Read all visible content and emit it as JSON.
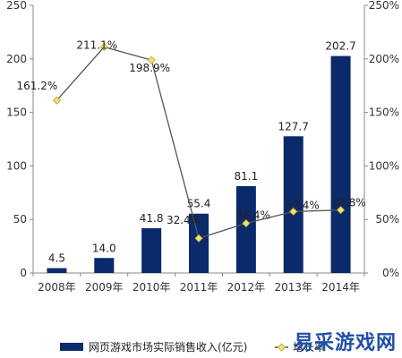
{
  "chart_data": {
    "type": "bar",
    "categories": [
      "2008年",
      "2009年",
      "2010年",
      "2011年",
      "2012年",
      "2013年",
      "2014年"
    ],
    "series": [
      {
        "name": "网页游戏市场实际销售收入(亿元)",
        "type": "bar",
        "axis": "left",
        "values": [
          4.5,
          14.0,
          41.8,
          55.4,
          81.1,
          127.7,
          202.7
        ],
        "labels": [
          "4.5",
          "14.0",
          "41.8",
          "55.4",
          "81.1",
          "127.7",
          "202.7"
        ]
      },
      {
        "name": "增长率",
        "type": "line",
        "axis": "right",
        "values": [
          161.2,
          211.1,
          198.9,
          32.4,
          46.4,
          57.4,
          58.8
        ],
        "labels": [
          "161.2%",
          "211.1%",
          "198.9%",
          "32.4%",
          "46.4%",
          "57.4%",
          "58.8%"
        ]
      }
    ],
    "left_axis": {
      "ylim": [
        0,
        250
      ],
      "ticks": [
        "0",
        "50",
        "100",
        "150",
        "200",
        "250"
      ]
    },
    "right_axis": {
      "ylim": [
        0,
        250
      ],
      "ticks": [
        "0%",
        "50%",
        "100%",
        "150%",
        "200%",
        "250%"
      ]
    },
    "grid": false,
    "legend_position": "bottom",
    "colors": {
      "bar": "#0b2a6b",
      "line": "#555555",
      "marker": "#f2e36b",
      "marker_edge": "#b9a53a"
    }
  },
  "watermark": "易采游戏网"
}
